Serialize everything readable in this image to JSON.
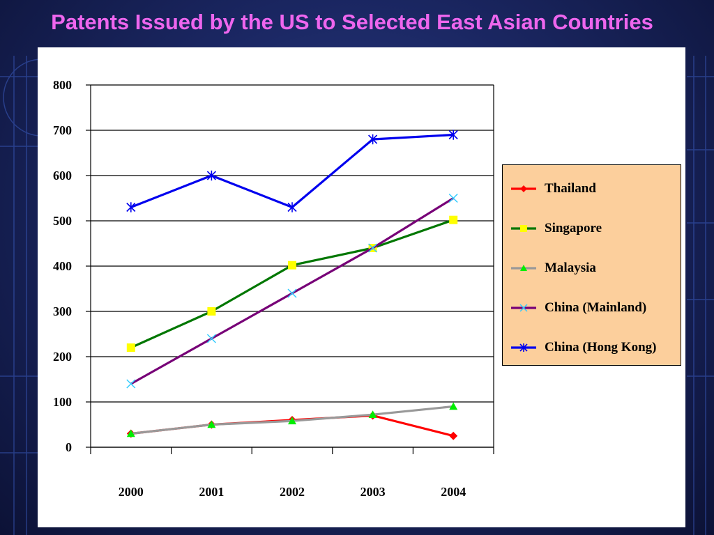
{
  "slide": {
    "title": "Patents Issued by the US to Selected East Asian Countries"
  },
  "colors": {
    "background": "#1b2763",
    "title": "#ee66ee",
    "legend_background": "#fccf9c"
  },
  "chart_data": {
    "type": "line",
    "title": "",
    "xlabel": "",
    "ylabel": "",
    "categories": [
      "2000",
      "2001",
      "2002",
      "2003",
      "2004"
    ],
    "ylim": [
      0,
      800
    ],
    "yticks": [
      0,
      100,
      200,
      300,
      400,
      500,
      600,
      700,
      800
    ],
    "grid": true,
    "legend_position": "right",
    "series": [
      {
        "name": "Thailand",
        "values": [
          30,
          50,
          60,
          70,
          25
        ],
        "color": "#ff0000",
        "marker": "diamond",
        "marker_color": "#ff0000"
      },
      {
        "name": "Singapore",
        "values": [
          220,
          300,
          402,
          440,
          502
        ],
        "color": "#007700",
        "marker": "square",
        "marker_color": "#ffff00"
      },
      {
        "name": "Malaysia",
        "values": [
          30,
          50,
          58,
          72,
          90
        ],
        "color": "#999999",
        "marker": "triangle",
        "marker_color": "#00ee00"
      },
      {
        "name": "China (Mainland)",
        "values": [
          140,
          240,
          340,
          440,
          550
        ],
        "color": "#770077",
        "marker": "x",
        "marker_color": "#33ccff"
      },
      {
        "name": "China (Hong Kong)",
        "values": [
          530,
          600,
          530,
          680,
          690
        ],
        "color": "#0000ee",
        "marker": "asterisk",
        "marker_color": "#0000ee"
      }
    ]
  }
}
